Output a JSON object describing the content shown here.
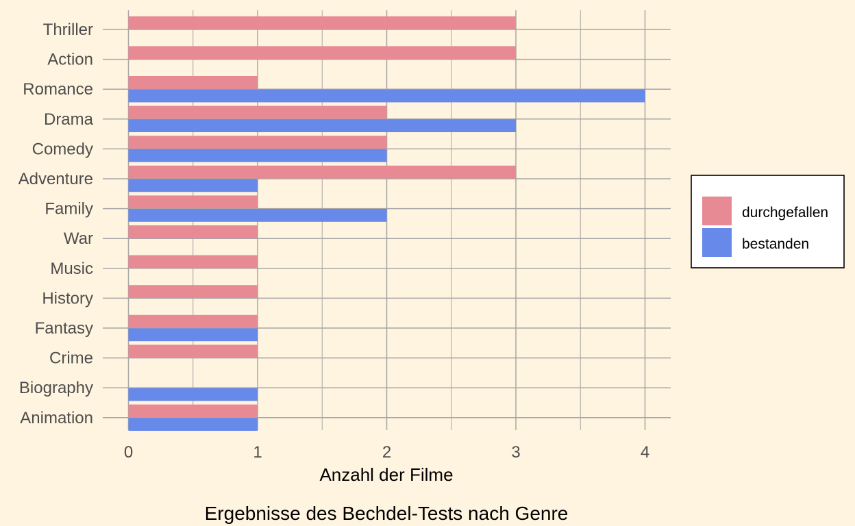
{
  "chart_data": {
    "type": "bar",
    "orientation": "horizontal",
    "title": "Ergebnisse des Bechdel-Tests nach Genre",
    "xlabel": "Anzahl der Filme",
    "ylabel": "",
    "xlim": [
      0,
      4.2
    ],
    "x_ticks": [
      "0",
      "1",
      "2",
      "3",
      "4"
    ],
    "grid": true,
    "legend_position": "right",
    "categories": [
      "Thriller",
      "Action",
      "Romance",
      "Drama",
      "Comedy",
      "Adventure",
      "Family",
      "War",
      "Music",
      "History",
      "Fantasy",
      "Crime",
      "Biography",
      "Animation"
    ],
    "series": [
      {
        "name": "durchgefallen",
        "color": "#e78a93",
        "values": [
          3,
          3,
          1,
          2,
          2,
          3,
          1,
          1,
          1,
          1,
          1,
          1,
          0,
          1
        ]
      },
      {
        "name": "bestanden",
        "color": "#6689ea",
        "values": [
          0,
          0,
          4,
          3,
          2,
          1,
          2,
          0,
          0,
          0,
          1,
          0,
          1,
          1
        ]
      }
    ]
  }
}
